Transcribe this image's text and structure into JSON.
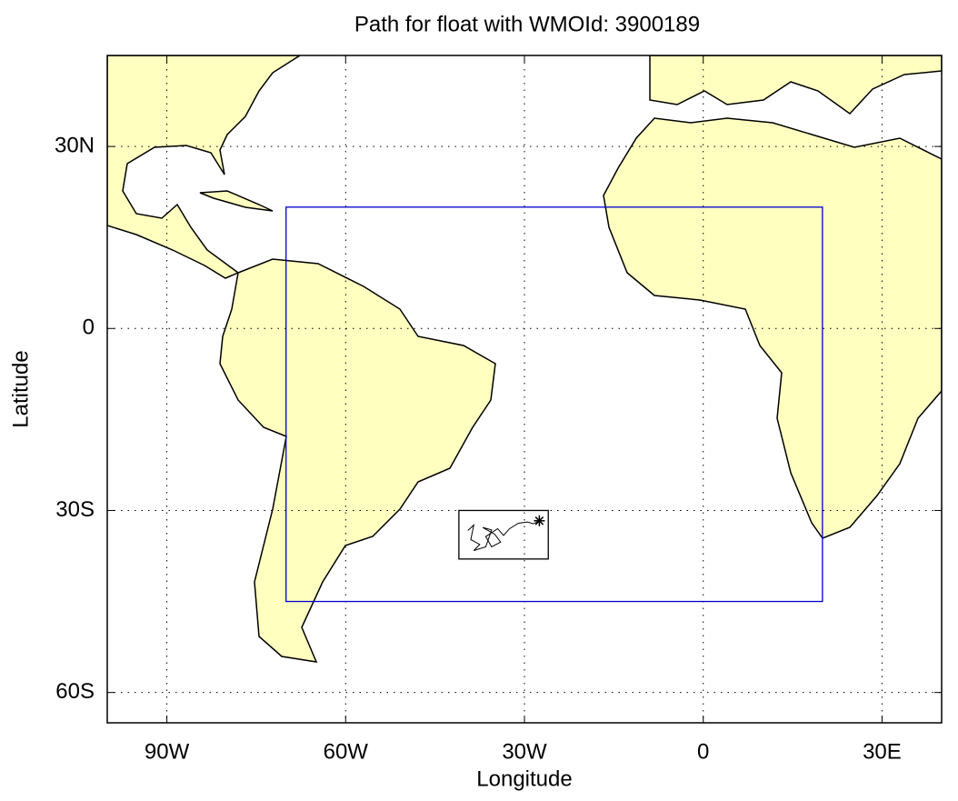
{
  "chart_data": {
    "type": "map",
    "title": "Path for float with WMOId: 3900189",
    "xlabel": "Longitude",
    "ylabel": "Latitude",
    "xlim": [
      -100,
      40
    ],
    "ylim": [
      -65,
      45
    ],
    "xticks": [
      {
        "value": -90,
        "label": "90W"
      },
      {
        "value": -60,
        "label": "60W"
      },
      {
        "value": -30,
        "label": "30W"
      },
      0,
      {
        "value": 30,
        "label": "30E"
      }
    ],
    "yticks": [
      {
        "value": -60,
        "label": "60S"
      },
      {
        "value": -30,
        "label": "30S"
      },
      0,
      {
        "value": 30,
        "label": "30N"
      }
    ],
    "grid": true,
    "land_color": "#ffffc0",
    "region": {
      "lon": [
        -70,
        20
      ],
      "lat": [
        -45,
        20
      ],
      "color": "#0000cc"
    },
    "float_box": {
      "lon": [
        -41,
        -26
      ],
      "lat": [
        -38,
        -30
      ]
    },
    "trajectory": {
      "color": "#000000",
      "x": [
        -39.5,
        -38.5,
        -39,
        -37.5,
        -38.5,
        -36.5,
        -35.5,
        -37,
        -35,
        -34,
        -35.5,
        -36.5,
        -34.5,
        -33.5,
        -32.5,
        -31,
        -29.5,
        -28.5,
        -27.5
      ],
      "y": [
        -33.3,
        -32.4,
        -34.8,
        -35.6,
        -36.6,
        -36.0,
        -33.2,
        -32.8,
        -33.9,
        -35.2,
        -36.0,
        -34.3,
        -33.0,
        -34.1,
        -33.0,
        -32.1,
        -31.9,
        -32.2,
        -31.7
      ]
    }
  }
}
